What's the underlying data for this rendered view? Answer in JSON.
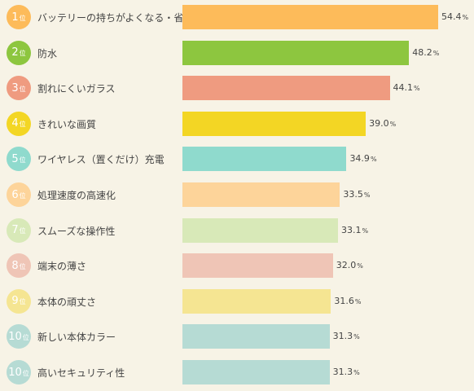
{
  "chart_data": {
    "type": "bar",
    "orientation": "horizontal",
    "rank_unit": "位",
    "value_unit": "%",
    "xlim": [
      0,
      54.4
    ],
    "items": [
      {
        "rank": "1",
        "label": "バッテリーの持ちがよくなる・省エネ",
        "value": 54.4,
        "value_text": "54.4",
        "color": "#fdbb5a",
        "badge_color": "#fdbb5a"
      },
      {
        "rank": "2",
        "label": "防水",
        "value": 48.2,
        "value_text": "48.2",
        "color": "#8dc63f",
        "badge_color": "#8dc63f"
      },
      {
        "rank": "3",
        "label": "割れにくいガラス",
        "value": 44.1,
        "value_text": "44.1",
        "color": "#ef9b80",
        "badge_color": "#ef9b80"
      },
      {
        "rank": "4",
        "label": "きれいな画質",
        "value": 39.0,
        "value_text": "39.0",
        "color": "#f3d624",
        "badge_color": "#f3d624"
      },
      {
        "rank": "5",
        "label": "ワイヤレス（置くだけ）充電",
        "value": 34.9,
        "value_text": "34.9",
        "color": "#8fdacd",
        "badge_color": "#8fdacd"
      },
      {
        "rank": "6",
        "label": "処理速度の高速化",
        "value": 33.5,
        "value_text": "33.5",
        "color": "#fdd49a",
        "badge_color": "#fdd49a"
      },
      {
        "rank": "7",
        "label": "スムーズな操作性",
        "value": 33.1,
        "value_text": "33.1",
        "color": "#d8e9b8",
        "badge_color": "#d8e9b8"
      },
      {
        "rank": "8",
        "label": "端末の薄さ",
        "value": 32.0,
        "value_text": "32.0",
        "color": "#efc5b6",
        "badge_color": "#efc5b6"
      },
      {
        "rank": "9",
        "label": "本体の頑丈さ",
        "value": 31.6,
        "value_text": "31.6",
        "color": "#f5e592",
        "badge_color": "#f5e592"
      },
      {
        "rank": "10",
        "label": "新しい本体カラー",
        "value": 31.3,
        "value_text": "31.3",
        "color": "#b6dbd4",
        "badge_color": "#b6dbd4"
      },
      {
        "rank": "10",
        "label": "高いセキュリティ性",
        "value": 31.3,
        "value_text": "31.3",
        "color": "#b6dbd4",
        "badge_color": "#b6dbd4"
      }
    ]
  }
}
